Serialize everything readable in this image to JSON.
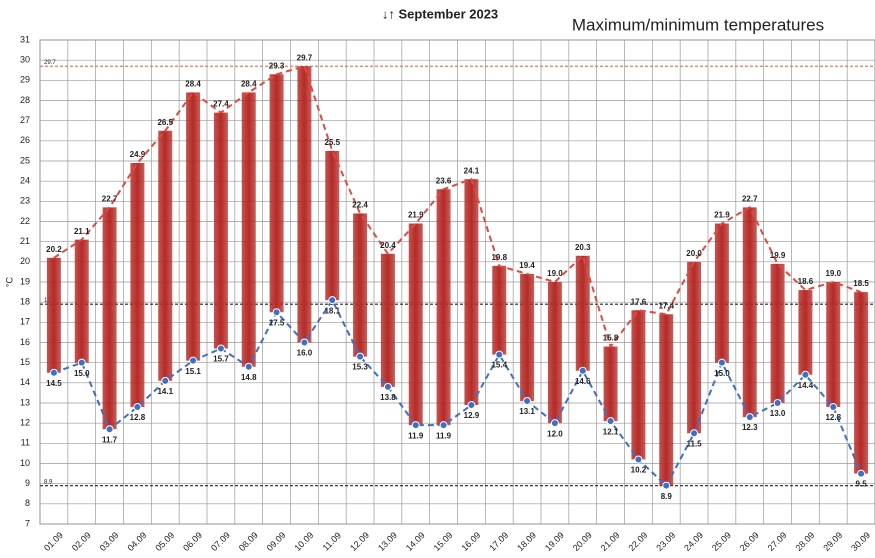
{
  "chart_data": {
    "type": "floating-bar",
    "title": "↓↑ September 2023",
    "subtitle": "Maximum/minimum temperatures",
    "y_label": "°C",
    "categories": [
      "01.09",
      "02.09",
      "03.09",
      "04.09",
      "05.09",
      "06.09",
      "07.09",
      "08.09",
      "09.09",
      "10.09",
      "11.09",
      "12.09",
      "13.09",
      "14.09",
      "15.09",
      "16.09",
      "17.09",
      "18.09",
      "19.09",
      "20.09",
      "21.09",
      "22.09",
      "23.09",
      "24.09",
      "25.09",
      "26.09",
      "27.09",
      "28.09",
      "29.09",
      "30.09"
    ],
    "series": [
      {
        "color": "#e04a40",
        "values": [
          20.2,
          21.1,
          22.7,
          24.9,
          26.5,
          28.4,
          27.4,
          28.4,
          29.3,
          29.7,
          25.5,
          22.4,
          20.4,
          21.9,
          23.6,
          24.1,
          19.8,
          19.4,
          19.0,
          20.3,
          15.8,
          17.6,
          17.4,
          20.0,
          21.9,
          22.7,
          19.9,
          18.6,
          19.0,
          18.5
        ],
        "value_labels": [
          "20.2",
          "21.1",
          "22.7",
          "24.9",
          "26.5",
          "28.4",
          "27.4",
          "28.4",
          "29.3",
          "29.7",
          "25.5",
          "22.4",
          "20.4",
          "21.9",
          "23.6",
          "24.1",
          "19.8",
          "19.4",
          "19.0",
          "20.3",
          "15.8",
          "17.6",
          "17.4",
          "20.0",
          "21.9",
          "22.7",
          "19.9",
          "18.6",
          "19.0",
          "18.5"
        ]
      },
      {
        "color": "#3f6fc4",
        "values": [
          14.5,
          15.0,
          11.7,
          12.8,
          14.1,
          15.1,
          15.7,
          14.8,
          17.5,
          16.0,
          18.1,
          15.3,
          13.8,
          11.9,
          11.9,
          12.9,
          15.4,
          13.1,
          12.0,
          14.6,
          12.1,
          10.2,
          8.9,
          11.5,
          15.0,
          12.3,
          13.0,
          14.4,
          12.8,
          9.5
        ],
        "value_labels": [
          "14.5",
          "15.0",
          "11.7",
          "12.8",
          "14.1",
          "15.1",
          "15.7",
          "14.8",
          "17.5",
          "16.0",
          "18.1",
          "15.3",
          "13.8",
          "11.9",
          "11.9",
          "12.9",
          "15.4",
          "13.1",
          "12.0",
          "14.6",
          "12.1",
          "10.2",
          "8.9",
          "11.5",
          "15.0",
          "12.3",
          "13.0",
          "14.4",
          "12.8",
          "9.5"
        ]
      }
    ],
    "bar_color": "#b52a26",
    "reference_lines": [
      {
        "value": 29.7,
        "color": "#e07a6a"
      },
      {
        "value": 17.9,
        "color": "#222222"
      },
      {
        "value": 8.9,
        "color": "#222222"
      }
    ],
    "ylim": [
      7,
      31
    ],
    "yticks": [
      7,
      8,
      9,
      10,
      11,
      12,
      13,
      14,
      15,
      16,
      17,
      18,
      19,
      20,
      21,
      22,
      23,
      24,
      25,
      26,
      27,
      28,
      29,
      30,
      31
    ],
    "grid": true
  }
}
